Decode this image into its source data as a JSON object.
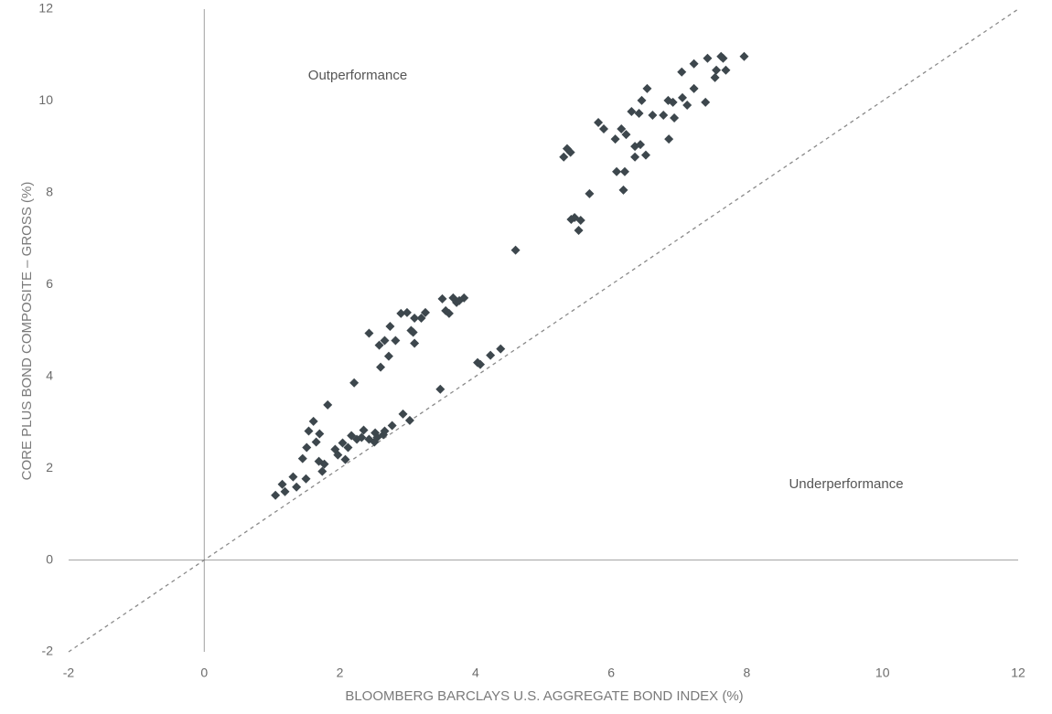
{
  "chart_data": {
    "type": "scatter",
    "x_label": "BLOOMBERG BARCLAYS U.S. AGGREGATE BOND INDEX (%)",
    "y_label": "CORE PLUS BOND COMPOSITE – GROSS (%)",
    "annotations": [
      "Outperformance",
      "Underperformance"
    ],
    "color": "#3d474d",
    "xlim": [
      -2,
      12
    ],
    "xticks": [
      -2,
      0,
      2,
      4,
      6,
      8,
      10,
      12
    ],
    "ylim": [
      -2,
      12
    ],
    "yticks": [
      -2,
      0,
      2,
      4,
      6,
      8,
      10,
      12
    ],
    "x": [
      1.05,
      1.15,
      1.19,
      1.31,
      1.36,
      1.5,
      1.45,
      1.51,
      1.54,
      1.61,
      1.65,
      1.7,
      1.69,
      1.74,
      1.77,
      1.82,
      1.93,
      1.97,
      2.04,
      2.08,
      2.12,
      2.17,
      2.21,
      2.25,
      2.32,
      2.35,
      2.43,
      2.43,
      2.51,
      2.52,
      2.55,
      2.58,
      2.6,
      2.66,
      2.64,
      2.66,
      2.74,
      2.72,
      2.77,
      2.82,
      2.9,
      2.93,
      2.99,
      3.03,
      3.05,
      3.08,
      3.1,
      3.1,
      3.2,
      3.26,
      3.48,
      3.51,
      3.56,
      3.61,
      3.67,
      3.72,
      3.76,
      3.83,
      4.03,
      4.07,
      4.22,
      4.37,
      4.59,
      5.3,
      5.35,
      5.4,
      5.41,
      5.46,
      5.52,
      5.55,
      5.68,
      5.81,
      5.89,
      6.06,
      6.08,
      6.15,
      6.2,
      6.18,
      6.22,
      6.3,
      6.35,
      6.35,
      6.41,
      6.43,
      6.45,
      6.51,
      6.53,
      6.61,
      6.77,
      6.84,
      6.85,
      6.91,
      6.93,
      7.04,
      7.05,
      7.12,
      7.22,
      7.22,
      7.39,
      7.42,
      7.53,
      7.55,
      7.62,
      7.65,
      7.69,
      7.96
    ],
    "values": [
      1.41,
      1.65,
      1.49,
      1.81,
      1.59,
      1.77,
      2.21,
      2.45,
      2.81,
      3.02,
      2.57,
      2.75,
      2.15,
      1.93,
      2.09,
      3.38,
      2.41,
      2.29,
      2.55,
      2.19,
      2.45,
      2.71,
      3.86,
      2.63,
      2.67,
      2.83,
      4.94,
      2.63,
      2.57,
      2.77,
      2.67,
      4.68,
      4.2,
      4.78,
      2.73,
      2.81,
      5.09,
      4.44,
      2.93,
      4.78,
      5.37,
      3.18,
      5.39,
      3.04,
      5.0,
      4.96,
      5.27,
      4.72,
      5.27,
      5.39,
      3.72,
      5.69,
      5.43,
      5.37,
      5.71,
      5.61,
      5.65,
      5.71,
      4.3,
      4.26,
      4.46,
      4.6,
      6.75,
      8.78,
      8.96,
      8.88,
      7.42,
      7.46,
      7.18,
      7.4,
      7.98,
      9.53,
      9.39,
      9.17,
      8.46,
      9.39,
      8.46,
      8.06,
      9.27,
      9.77,
      9.01,
      8.78,
      9.73,
      9.05,
      10.01,
      8.82,
      10.27,
      9.69,
      9.69,
      10.01,
      9.17,
      9.97,
      9.63,
      10.63,
      10.07,
      9.91,
      10.81,
      10.27,
      9.97,
      10.93,
      10.51,
      10.67,
      10.97,
      10.93,
      10.67,
      10.97
    ]
  }
}
